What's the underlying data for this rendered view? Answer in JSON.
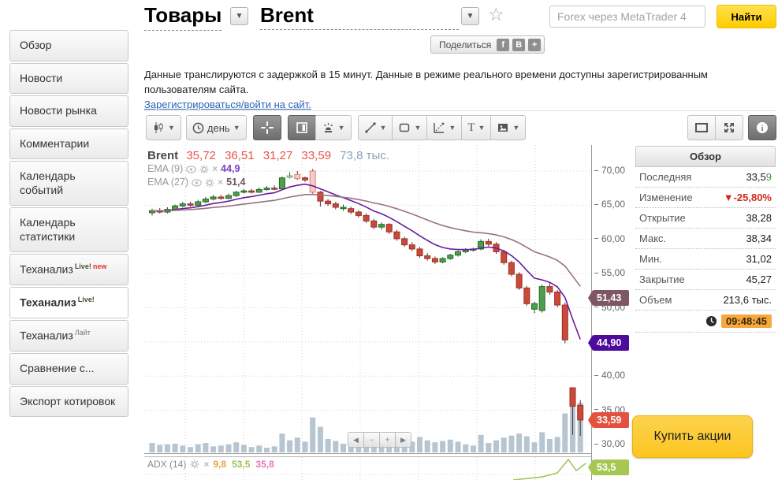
{
  "header": {
    "category": "Товары",
    "instrument": "Brent",
    "search_placeholder": "Forex через MetaTrader 4",
    "search_button": "Найти",
    "share_label": "Поделиться",
    "share_icons": [
      "f",
      "В",
      "+"
    ]
  },
  "sidebar": {
    "items": [
      {
        "label": "Обзор"
      },
      {
        "label": "Новости"
      },
      {
        "label": "Новости рынка"
      },
      {
        "label": "Комментарии"
      },
      {
        "label": "Календарь событий"
      },
      {
        "label": "Календарь статистики"
      },
      {
        "label": "Теханализ",
        "sup": "Live!",
        "badge": "new"
      },
      {
        "label": "Теханализ",
        "sup": "Live!",
        "active": true
      },
      {
        "label": "Теханализ",
        "sup": "Лайт",
        "sup_muted": true
      },
      {
        "label": "Сравнение с..."
      },
      {
        "label": "Экспорт котировок"
      }
    ]
  },
  "notice": {
    "text": "Данные транслируются с задержкой в 15 минут. Данные в режиме реального времени доступны зарегистрированным пользователям сайта.",
    "link": "Зарегистрироваться/войти на сайт."
  },
  "toolbar": {
    "interval_label": "день",
    "text_tool": "T",
    "info_glyph": "i"
  },
  "legend": {
    "symbol": "Brent",
    "open": "35,72",
    "high": "36,51",
    "low": "31,27",
    "close": "33,59",
    "volume": "73,8 тыс.",
    "indicators": [
      {
        "name": "EMA (9)",
        "value": "44,9",
        "value_color": "#7b3fc4"
      },
      {
        "name": "EMA (27)",
        "value": "51,4",
        "value_color": "#6e5360"
      }
    ]
  },
  "overview": {
    "title": "Обзор",
    "rows": [
      {
        "label": "Последняя",
        "value": "33,59",
        "accent_split": [
          "33,5",
          "9"
        ]
      },
      {
        "label": "Изменение",
        "value": "▼-25,80%",
        "color": "#d3281e",
        "bold": true
      },
      {
        "label": "Открытие",
        "value": "38,28"
      },
      {
        "label": "Макс.",
        "value": "38,34"
      },
      {
        "label": "Мин.",
        "value": "31,02"
      },
      {
        "label": "Закрытие",
        "value": "45,27"
      },
      {
        "label": "Объем",
        "value": "213,6 тыс."
      }
    ],
    "time": "09:48:45"
  },
  "buy_button": "Купить акции",
  "stepper": [
    "◀",
    "−",
    "+",
    "▶"
  ],
  "adx": {
    "name": "ADX (14)",
    "values": [
      {
        "text": "9,8",
        "color": "#e8a33d"
      },
      {
        "text": "53,5",
        "color": "#9dc34e"
      },
      {
        "text": "35,8",
        "color": "#e874b4"
      }
    ],
    "tag": {
      "text": "53,5",
      "color": "#a6c853"
    }
  },
  "chart_data": {
    "type": "candlestick",
    "symbol": "Brent",
    "interval": "день",
    "last_candle": {
      "open": 35.72,
      "high": 36.51,
      "low": 31.27,
      "close": 33.59,
      "volume_thousands": 73.8
    },
    "price_axis": {
      "gridlines": [
        70,
        65,
        60,
        55,
        50,
        45,
        40,
        35,
        30
      ],
      "labels": [
        "70,00",
        "65,00",
        "60,00",
        "55,00",
        "50,00",
        "45,00",
        "40,00",
        "35,00",
        "30,00"
      ]
    },
    "tags": [
      {
        "text": "51,43",
        "value": 51.43,
        "color": "#7d5766",
        "series": "EMA (27)"
      },
      {
        "text": "44,90",
        "value": 44.9,
        "color": "#4c0b9b",
        "series": "EMA (9)"
      },
      {
        "text": "33,59",
        "value": 33.59,
        "color": "#e2523f",
        "series": "last-price"
      }
    ],
    "emas": [
      {
        "period": 9,
        "color": "#6a1d9a",
        "last_value": 44.9
      },
      {
        "period": 27,
        "color": "#9a7082",
        "last_value": 51.4
      }
    ],
    "volume_unit": "тыс.",
    "candles": [
      [
        63.9,
        64.5,
        63.5,
        64.2,
        14,
        "g"
      ],
      [
        64.2,
        64.6,
        63.8,
        64.0,
        11,
        "r"
      ],
      [
        64.0,
        64.7,
        63.8,
        64.4,
        12,
        "g"
      ],
      [
        64.4,
        65.1,
        64.2,
        64.9,
        13,
        "g"
      ],
      [
        64.9,
        65.5,
        64.7,
        65.2,
        10,
        "g"
      ],
      [
        65.2,
        65.5,
        64.8,
        65.0,
        8,
        "r"
      ],
      [
        65.0,
        65.8,
        64.9,
        65.5,
        12,
        "g"
      ],
      [
        65.5,
        66.2,
        65.3,
        65.9,
        14,
        "g"
      ],
      [
        65.9,
        66.5,
        65.7,
        66.2,
        9,
        "g"
      ],
      [
        66.2,
        66.5,
        65.8,
        66.0,
        10,
        "r"
      ],
      [
        66.0,
        66.7,
        65.9,
        66.4,
        12,
        "g"
      ],
      [
        66.4,
        67.1,
        66.2,
        66.9,
        15,
        "g"
      ],
      [
        66.9,
        67.4,
        66.7,
        67.1,
        11,
        "g"
      ],
      [
        67.1,
        67.4,
        66.7,
        66.9,
        8,
        "r"
      ],
      [
        66.9,
        67.6,
        66.8,
        67.3,
        10,
        "g"
      ],
      [
        67.3,
        67.8,
        67.1,
        67.5,
        7,
        "g"
      ],
      [
        67.5,
        67.9,
        67.2,
        67.4,
        9,
        "r"
      ],
      [
        67.4,
        69.2,
        67.3,
        69.0,
        28,
        "g"
      ],
      [
        69.1,
        69.8,
        68.9,
        69.3,
        18,
        "gp"
      ],
      [
        69.5,
        70.0,
        68.7,
        68.9,
        22,
        "rp"
      ],
      [
        69.0,
        69.2,
        68.4,
        68.7,
        16,
        "r"
      ],
      [
        70.0,
        70.3,
        66.7,
        66.9,
        52,
        "rp"
      ],
      [
        66.9,
        67.1,
        64.8,
        65.6,
        38,
        "r"
      ],
      [
        65.6,
        65.9,
        64.9,
        65.2,
        20,
        "r"
      ],
      [
        65.2,
        65.5,
        64.4,
        64.7,
        17,
        "r"
      ],
      [
        64.7,
        65.1,
        64.2,
        64.5,
        13,
        "g"
      ],
      [
        64.5,
        64.8,
        63.7,
        64.0,
        15,
        "r"
      ],
      [
        64.0,
        64.3,
        63.2,
        63.5,
        18,
        "r"
      ],
      [
        63.5,
        63.8,
        62.4,
        62.7,
        21,
        "r"
      ],
      [
        62.7,
        63.0,
        61.5,
        61.8,
        19,
        "r"
      ],
      [
        61.8,
        62.5,
        61.4,
        62.2,
        14,
        "g"
      ],
      [
        62.2,
        62.4,
        60.8,
        61.1,
        22,
        "r"
      ],
      [
        61.1,
        61.4,
        59.8,
        60.1,
        25,
        "r"
      ],
      [
        60.1,
        60.4,
        58.9,
        59.2,
        20,
        "r"
      ],
      [
        59.2,
        59.6,
        58.3,
        58.6,
        16,
        "r"
      ],
      [
        58.6,
        58.9,
        57.3,
        57.6,
        23,
        "r"
      ],
      [
        57.6,
        58.0,
        56.9,
        57.2,
        18,
        "r"
      ],
      [
        57.2,
        57.5,
        56.4,
        56.7,
        15,
        "r"
      ],
      [
        56.7,
        57.4,
        56.5,
        57.2,
        17,
        "g"
      ],
      [
        57.2,
        57.9,
        57.0,
        57.7,
        19,
        "g"
      ],
      [
        57.7,
        58.4,
        57.5,
        58.2,
        16,
        "g"
      ],
      [
        58.2,
        58.7,
        58.0,
        58.5,
        12,
        "g"
      ],
      [
        58.5,
        58.8,
        58.2,
        58.6,
        10,
        "g"
      ],
      [
        58.6,
        60.0,
        58.4,
        59.7,
        26,
        "g"
      ],
      [
        59.7,
        60.1,
        59.0,
        59.3,
        14,
        "r"
      ],
      [
        59.3,
        59.6,
        57.9,
        58.2,
        18,
        "r"
      ],
      [
        58.2,
        58.5,
        56.3,
        56.6,
        22,
        "r"
      ],
      [
        56.6,
        56.9,
        54.6,
        54.9,
        25,
        "r"
      ],
      [
        54.9,
        55.2,
        52.6,
        52.9,
        28,
        "r"
      ],
      [
        52.9,
        53.2,
        50.3,
        50.6,
        24,
        "r"
      ],
      [
        50.6,
        50.9,
        49.2,
        49.8,
        15,
        "g"
      ],
      [
        49.6,
        53.4,
        49.3,
        53.1,
        30,
        "g"
      ],
      [
        53.1,
        53.8,
        51.9,
        52.3,
        20,
        "r"
      ],
      [
        52.3,
        52.6,
        50.1,
        50.4,
        23,
        "r"
      ],
      [
        50.4,
        50.8,
        44.8,
        45.3,
        58,
        "r"
      ],
      [
        38.3,
        38.34,
        31.4,
        35.6,
        68,
        "r"
      ],
      [
        35.72,
        36.51,
        31.27,
        33.59,
        73.8,
        "r"
      ]
    ],
    "adx_line_points": [
      [
        468,
        29
      ],
      [
        505,
        25
      ],
      [
        524,
        20
      ],
      [
        538,
        3
      ],
      [
        548,
        17
      ],
      [
        560,
        8
      ]
    ],
    "colors": {
      "candle_up_fill": "#4e9e4e",
      "candle_up_stroke": "#1e6b24",
      "candle_up_pale_fill": "#d9ecd9",
      "candle_up_pale_stroke": "#6aa86a",
      "candle_down_fill": "#c94a3b",
      "candle_down_stroke": "#9e2f24",
      "candle_down_pale_fill": "#f3cdc5",
      "candle_down_pale_stroke": "#d98575",
      "volume_bar": "#b7c5d1",
      "grid": "#d0d0d0",
      "wick": "#3c3c3c",
      "adx_line": "#9dc34e"
    }
  }
}
